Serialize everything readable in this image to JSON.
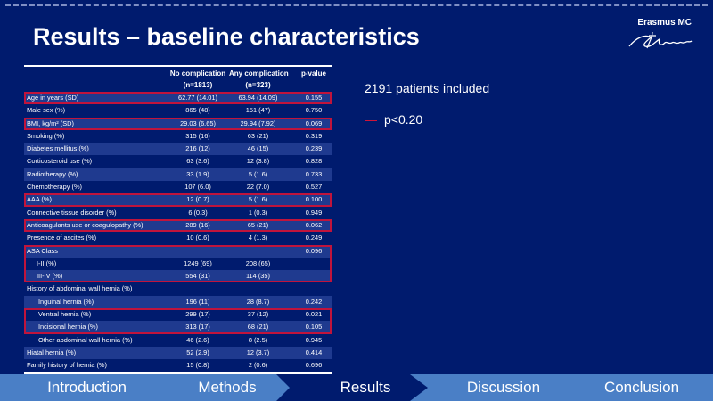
{
  "slide_title": "Results – baseline characteristics",
  "logo": {
    "text": "Erasmus MC",
    "icon": "erasmus-signature-icon"
  },
  "table": {
    "headers": {
      "group1": "No complication",
      "group1_n": "(n=1813)",
      "group2": "Any complication",
      "group2_n": "(n=323)",
      "pvalue": "p-value"
    },
    "rows": [
      {
        "label": "Age in years (SD)",
        "c1": "62.77 (14.01)",
        "c2": "63.94 (14.09)",
        "p": "0.155"
      },
      {
        "label": "Male sex (%)",
        "c1": "865 (48)",
        "c2": "151 (47)",
        "p": "0.750"
      },
      {
        "label": "BMI, kg/m² (SD)",
        "c1": "29.03 (6.65)",
        "c2": "29.94 (7.92)",
        "p": "0.069"
      },
      {
        "label": "Smoking (%)",
        "c1": "315 (16)",
        "c2": "63 (21)",
        "p": "0.319"
      },
      {
        "label": "Diabetes mellitus (%)",
        "c1": "216 (12)",
        "c2": "46 (15)",
        "p": "0.239"
      },
      {
        "label": "Corticosteroid use (%)",
        "c1": "63 (3.6)",
        "c2": "12 (3.8)",
        "p": "0.828"
      },
      {
        "label": "Radiotherapy (%)",
        "c1": "33 (1.9)",
        "c2": "5 (1.6)",
        "p": "0.733"
      },
      {
        "label": "Chemotherapy (%)",
        "c1": "107 (6.0)",
        "c2": "22 (7.0)",
        "p": "0.527"
      },
      {
        "label": "AAA (%)",
        "c1": "12 (0.7)",
        "c2": "5 (1.6)",
        "p": "0.100"
      },
      {
        "label": "Connective tissue disorder (%)",
        "c1": "6 (0.3)",
        "c2": "1 (0.3)",
        "p": "0.949"
      },
      {
        "label": "Anticoagulants use or coagulopathy (%)",
        "c1": "289 (16)",
        "c2": "65 (21)",
        "p": "0.062"
      },
      {
        "label": "Presence of ascites (%)",
        "c1": "10 (0.6)",
        "c2": "4 (1.3)",
        "p": "0.249"
      },
      {
        "label": "ASA Class",
        "c1": "",
        "c2": "",
        "p": "0.096"
      },
      {
        "label": "I-II (%)",
        "c1": "1249 (69)",
        "c2": "208 (65)",
        "p": ""
      },
      {
        "label": "III-IV (%)",
        "c1": "554 (31)",
        "c2": "114 (35)",
        "p": ""
      },
      {
        "label": "History of abdominal wall hernia (%)",
        "c1": "",
        "c2": "",
        "p": ""
      },
      {
        "label": "Inguinal hernia (%)",
        "c1": "196 (11)",
        "c2": "28 (8.7)",
        "p": "0.242"
      },
      {
        "label": "Ventral hernia (%)",
        "c1": "299 (17)",
        "c2": "37 (12)",
        "p": "0.021"
      },
      {
        "label": "Incisional hernia (%)",
        "c1": "313 (17)",
        "c2": "68 (21)",
        "p": "0.105"
      },
      {
        "label": "Other abdominal wall hernia (%)",
        "c1": "46 (2.6)",
        "c2": "8 (2.5)",
        "p": "0.945"
      },
      {
        "label": "Hiatal hernia (%)",
        "c1": "52 (2.9)",
        "c2": "12 (3.7)",
        "p": "0.414"
      },
      {
        "label": "Family history of hernia (%)",
        "c1": "15 (0.8)",
        "c2": "2 (0.6)",
        "p": "0.696"
      }
    ]
  },
  "info": {
    "patients": "2191 patients included",
    "legend": "p<0.20"
  },
  "colors": {
    "background": "#001b6e",
    "highlight": "#c0143c",
    "nav": "#4a7fc6",
    "row_alt": "#1f3a8f"
  },
  "nav": {
    "items": [
      "Introduction",
      "Methods",
      "Results",
      "Discussion",
      "Conclusion"
    ],
    "active": "Results"
  }
}
